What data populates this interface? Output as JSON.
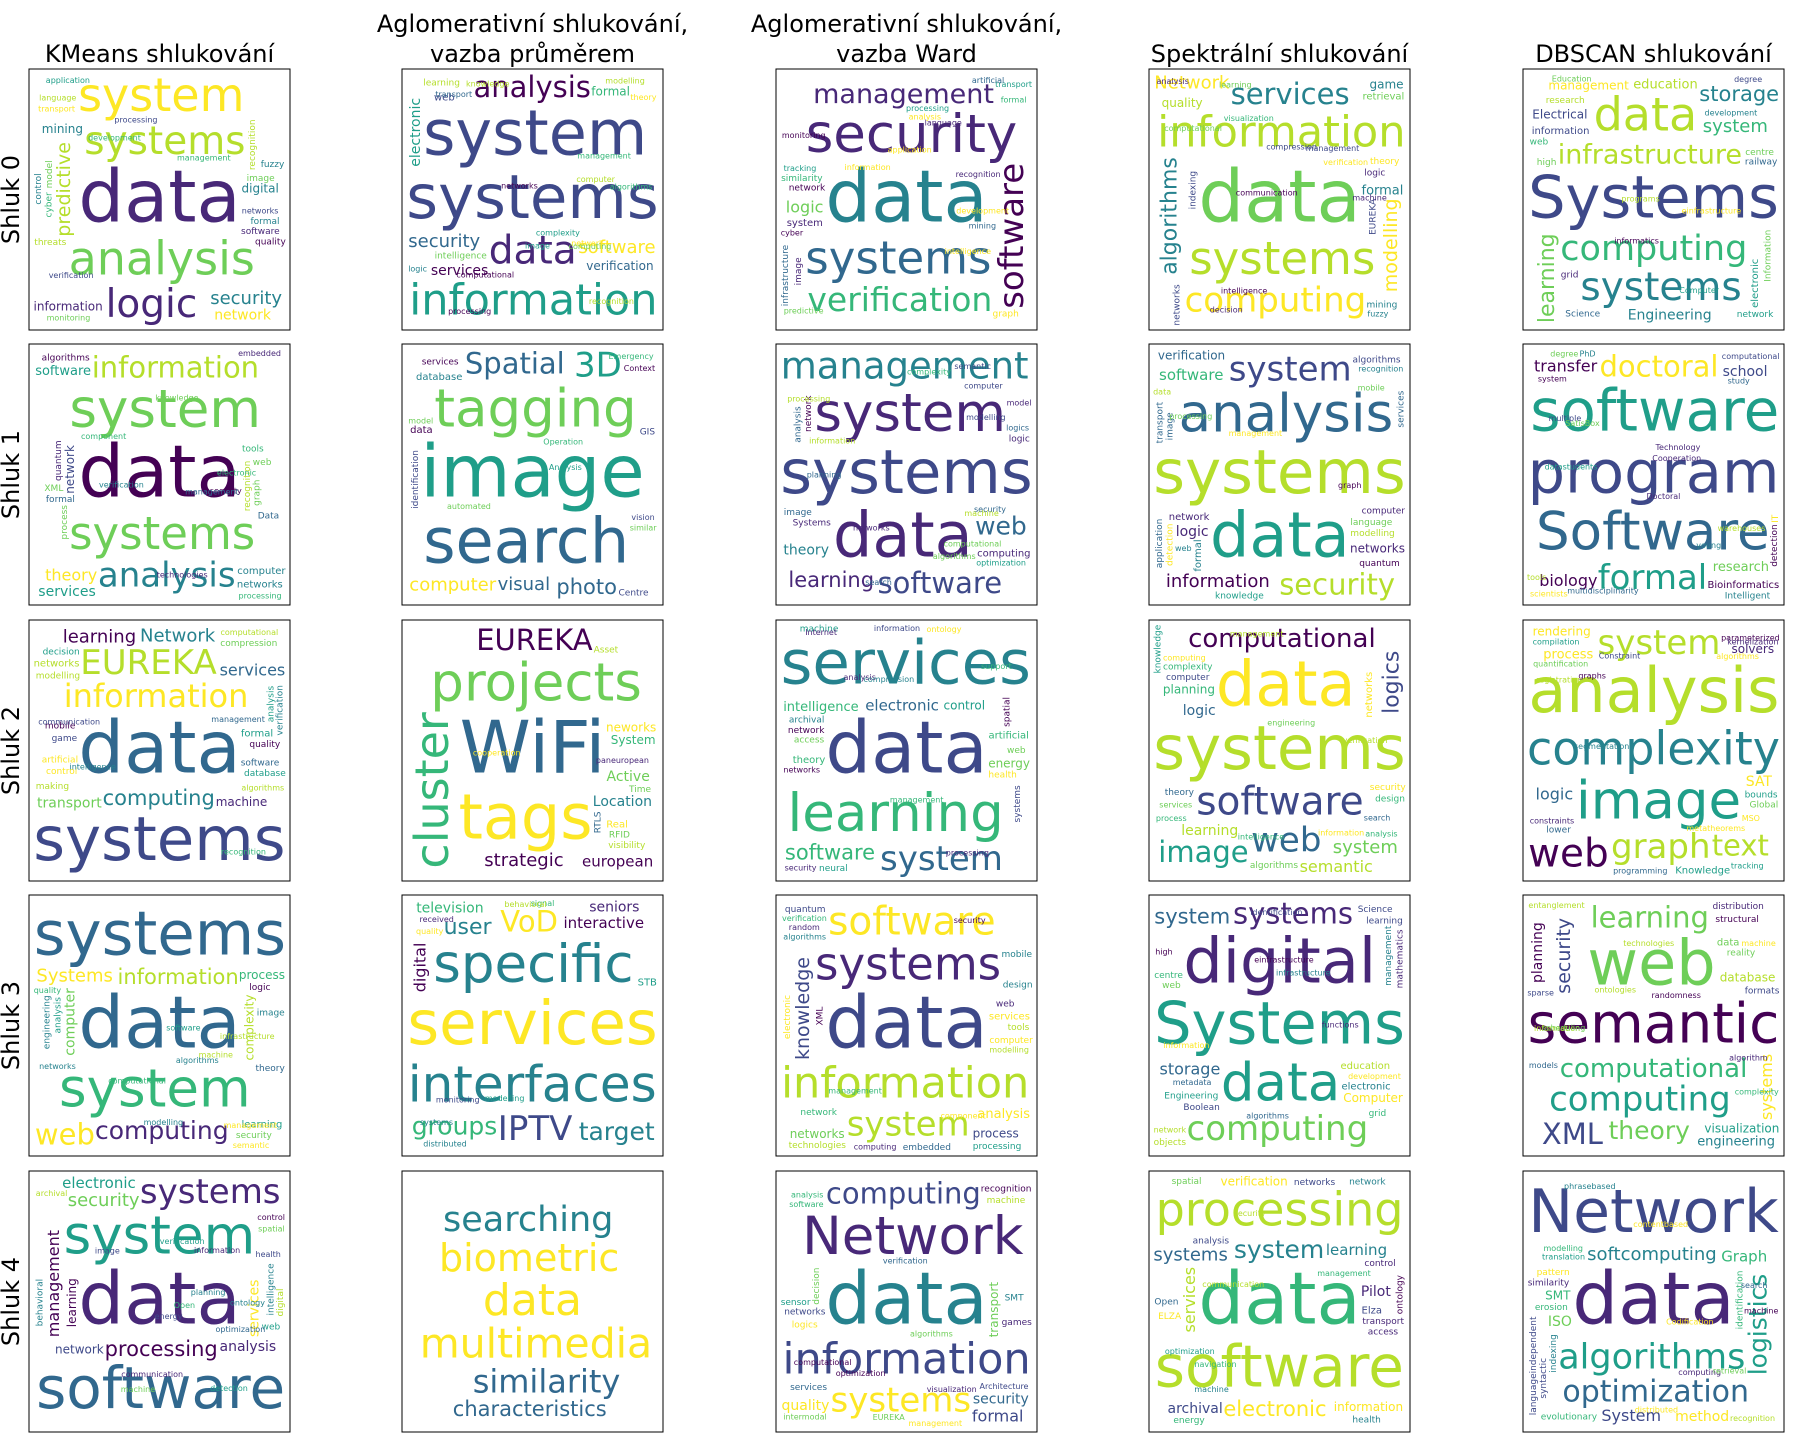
{
  "chart_data": {
    "type": "wordcloud-grid",
    "columns": [
      "KMeans shlukování",
      "Aglomerativní shlukování,\nvazba průměrem",
      "Aglomerativní shlukování,\nvazba Ward",
      "Spektrální shlukování",
      "DBSCAN shlukování"
    ],
    "rows": [
      "Shluk 0",
      "Shluk 1",
      "Shluk 2",
      "Shluk 3",
      "Shluk 4"
    ],
    "clouds": [
      [
        [
          "data",
          "analysis",
          "systems",
          "system",
          "logic",
          "verification",
          "management",
          "security",
          "information",
          "predictive",
          "digital",
          "network",
          "mining",
          "networks",
          "recognition",
          "software",
          "monitoring",
          "image",
          "threats",
          "formal",
          "quality",
          "cyber",
          "processing",
          "application",
          "development",
          "transport",
          "fuzzy",
          "model",
          "control",
          "language"
        ],
        [
          "systems",
          "system",
          "data",
          "information",
          "analysis",
          "software",
          "management",
          "security",
          "verification",
          "services",
          "formal",
          "electronic",
          "intelligence",
          "web",
          "learning",
          "theory",
          "modelling",
          "complexity",
          "image",
          "processing",
          "knowledge",
          "computer",
          "network",
          "transport",
          "networks",
          "logic",
          "algorithms",
          "computing",
          "computational",
          "recognition"
        ],
        [
          "data",
          "systems",
          "security",
          "verification",
          "management",
          "software",
          "formal",
          "analysis",
          "logic",
          "information",
          "network",
          "system",
          "similarity",
          "transport",
          "artificial",
          "monitoring",
          "tracking",
          "cyber",
          "application",
          "predictive",
          "development",
          "recognition",
          "graph",
          "intelligence",
          "mining",
          "processing",
          "language",
          "image",
          "infrastructure"
        ],
        [
          "data",
          "systems",
          "information",
          "computing",
          "services",
          "Network",
          "decision",
          "formal",
          "algorithms",
          "modelling",
          "quality",
          "retrieval",
          "game",
          "communication",
          "indexing",
          "EUREKA",
          "management",
          "logic",
          "visualization",
          "compression",
          "learning",
          "verification",
          "theory",
          "computational",
          "intelligence",
          "analysis",
          "networks",
          "mining",
          "fuzzy",
          "machine"
        ],
        [
          "Systems",
          "infrastructure",
          "computing",
          "data",
          "systems",
          "system",
          "storage",
          "education",
          "learning",
          "Engineering",
          "management",
          "information",
          "Electrical",
          "electronic",
          "railway",
          "research",
          "centre",
          "development",
          "Science",
          "Information",
          "network",
          "high",
          "informatics",
          "grid",
          "degree",
          "programs",
          "Computer",
          "web",
          "einfrastructure",
          "Education"
        ]
      ],
      [
        [
          "data",
          "systems",
          "system",
          "analysis",
          "information",
          "security",
          "knowledge",
          "software",
          "theory",
          "computer",
          "management",
          "services",
          "network",
          "networks",
          "algorithms",
          "recognition",
          "verification",
          "processing",
          "technologies",
          "tools",
          "web",
          "formal",
          "graph",
          "component",
          "electronic",
          "quantum",
          "embedded",
          "process",
          "XML",
          "Data"
        ],
        [
          "image",
          "search",
          "tagging",
          "3D",
          "Spatial",
          "visual",
          "photo",
          "computer",
          "Operation",
          "database",
          "services",
          "vision",
          "Centre",
          "data",
          "GIS",
          "Context",
          "Emergency",
          "automated",
          "model",
          "similar",
          "identification",
          "Analysis"
        ],
        [
          "systems",
          "data",
          "system",
          "management",
          "software",
          "web",
          "learning",
          "algorithms",
          "complexity",
          "computing",
          "Systems",
          "theory",
          "image",
          "optimization",
          "computational",
          "information",
          "analysis",
          "planning",
          "network",
          "logic",
          "logics",
          "search",
          "security",
          "computer",
          "semantic",
          "networks",
          "modelling",
          "model",
          "processing",
          "machine"
        ],
        [
          "systems",
          "data",
          "analysis",
          "system",
          "security",
          "information",
          "software",
          "management",
          "verification",
          "network",
          "networks",
          "logic",
          "computer",
          "formal",
          "language",
          "image",
          "modelling",
          "quantum",
          "detection",
          "knowledge",
          "transport",
          "application",
          "recognition",
          "algorithms",
          "services",
          "graph",
          "mobile",
          "processing",
          "web",
          "data"
        ],
        [
          "program",
          "software",
          "Software",
          "formal",
          "doctoral",
          "Technology",
          "Cooperation",
          "research",
          "transfer",
          "Bioinformatics",
          "biology",
          "school",
          "computational",
          "multidisciplinarity",
          "Intelligent",
          "degree",
          "scientists",
          "IT",
          "study",
          "multiple",
          "PhD",
          "young",
          "system",
          "datastudents",
          "tools",
          "detection",
          "warehouses",
          "Doctoral",
          "SatisBox"
        ]
      ],
      [
        [
          "data",
          "systems",
          "information",
          "EUREKA",
          "computing",
          "Network",
          "management",
          "learning",
          "machine",
          "transport",
          "services",
          "networks",
          "compression",
          "formal",
          "artificial",
          "computational",
          "software",
          "game",
          "control",
          "mobile",
          "database",
          "quality",
          "algorithms",
          "modelling",
          "decision",
          "making",
          "analysis",
          "verification",
          "communication",
          "intelligence",
          "recognition"
        ],
        [
          "WiFi",
          "tags",
          "projects",
          "cluster",
          "EUREKA",
          "strategic",
          "european",
          "paneuropean",
          "cooperation",
          "Location",
          "neworks",
          "Active",
          "System",
          "Real",
          "RTLS",
          "Time",
          "RFID",
          "visibility",
          "Asset"
        ],
        [
          "data",
          "services",
          "learning",
          "system",
          "software",
          "processing",
          "electronic",
          "intelligence",
          "control",
          "artificial",
          "management",
          "information",
          "energy",
          "theory",
          "access",
          "network",
          "health",
          "spatial",
          "networks",
          "archival",
          "web",
          "neural",
          "machine",
          "ontology",
          "security",
          "Internet",
          "systems",
          "analysis",
          "compression",
          "support"
        ],
        [
          "systems",
          "data",
          "software",
          "web",
          "computational",
          "information",
          "image",
          "system",
          "logics",
          "learning",
          "semantic",
          "logic",
          "planning",
          "networks",
          "computer",
          "algorithms",
          "theory",
          "complexity",
          "engineering",
          "security",
          "design",
          "computing",
          "knowledge",
          "management",
          "search",
          "process",
          "services",
          "intelligence",
          "verification",
          "analysis"
        ],
        [
          "complexity",
          "analysis",
          "image",
          "graph",
          "web",
          "system",
          "text",
          "process",
          "rendering",
          "Knowledge",
          "logic",
          "SAT",
          "solvers",
          "programming",
          "parameterized",
          "compilation",
          "constraints",
          "kernelization",
          "Global",
          "Constraint",
          "metatheorems",
          "lower",
          "quantification",
          "bounds",
          "tracking",
          "MSO",
          "segmentation",
          "graphs",
          "registration",
          "algorithms"
        ]
      ],
      [
        [
          "data",
          "systems",
          "system",
          "computing",
          "information",
          "Systems",
          "web",
          "software",
          "algorithms",
          "computational",
          "process",
          "computer",
          "complexity",
          "learning",
          "analysis",
          "image",
          "security",
          "semantic",
          "management",
          "logic",
          "machine",
          "theory",
          "modelling",
          "networks",
          "quality",
          "engineering",
          "infrastructure"
        ],
        [
          "services",
          "interfaces",
          "specific",
          "IPTV",
          "VoD",
          "groups",
          "interactive",
          "target",
          "user",
          "seniors",
          "digital",
          "television",
          "distributed",
          "STB",
          "systems",
          "signal",
          "received",
          "quality",
          "modelling",
          "monitoring",
          "behavioral"
        ],
        [
          "data",
          "systems",
          "information",
          "system",
          "software",
          "security",
          "management",
          "analysis",
          "networks",
          "knowledge",
          "process",
          "services",
          "technologies",
          "modelling",
          "computer",
          "embedded",
          "algorithms",
          "web",
          "design",
          "processing",
          "quantum",
          "network",
          "tools",
          "verification",
          "mobile",
          "computing",
          "XML",
          "component",
          "random",
          "electronic"
        ],
        [
          "Systems",
          "digital",
          "data",
          "computing",
          "systems",
          "infrastructure",
          "system",
          "algorithms",
          "storage",
          "education",
          "Engineering",
          "electronic",
          "Computer",
          "development",
          "learning",
          "Boolean",
          "Science",
          "management",
          "centre",
          "functions",
          "information",
          "objects",
          "web",
          "metadata",
          "network",
          "identification",
          "einfrastructure",
          "grid",
          "high",
          "mathematics"
        ],
        [
          "semantic",
          "web",
          "computational",
          "computing",
          "learning",
          "theory",
          "XML",
          "engineering",
          "database",
          "security",
          "systems",
          "planning",
          "visualization",
          "data",
          "reality",
          "structural",
          "distribution",
          "entanglement",
          "information",
          "machine",
          "algorithm",
          "randomness",
          "scheduling",
          "formats",
          "models",
          "technologies",
          "sparse",
          "ontologies",
          "complexity"
        ]
      ],
      [
        [
          "data",
          "software",
          "system",
          "systems",
          "processing",
          "security",
          "electronic",
          "information",
          "network",
          "analysis",
          "management",
          "services",
          "learning",
          "health",
          "spatial",
          "ontology",
          "verification",
          "intelligence",
          "web",
          "detection",
          "Open",
          "behavioral",
          "control",
          "image",
          "energy",
          "planning",
          "archival",
          "digital",
          "optimization",
          "machine",
          "communication"
        ],
        [
          "data",
          "multimedia",
          "biometric",
          "searching",
          "similarity",
          "characteristics"
        ],
        [
          "data",
          "information",
          "Network",
          "systems",
          "computing",
          "EUREKA",
          "computational",
          "algorithms",
          "verification",
          "security",
          "formal",
          "quality",
          "transport",
          "management",
          "networks",
          "decision",
          "logics",
          "Architecture",
          "services",
          "machine",
          "SMT",
          "recognition",
          "games",
          "sensor",
          "intermodal",
          "software",
          "visualization",
          "analysis",
          "optimization"
        ],
        [
          "data",
          "software",
          "processing",
          "system",
          "electronic",
          "systems",
          "learning",
          "management",
          "information",
          "archival",
          "services",
          "Pilot",
          "verification",
          "Elza",
          "transport",
          "analysis",
          "networks",
          "energy",
          "access",
          "ELZA",
          "control",
          "Open",
          "spatial",
          "health",
          "ontology",
          "network",
          "security",
          "navigation",
          "optimization",
          "machine",
          "communication"
        ],
        [
          "data",
          "Network",
          "algorithms",
          "optimization",
          "computing",
          "softcomputing",
          "Graph",
          "logistics",
          "System",
          "method",
          "evolutionary",
          "ISO",
          "SMT",
          "translation",
          "recognition",
          "erosion",
          "identification",
          "pattern",
          "modelling",
          "languageindependent",
          "Codification",
          "phrasebased",
          "indexing",
          "similarity",
          "retrieval",
          "search",
          "machine",
          "syntactic",
          "distributed",
          "contentbased"
        ]
      ]
    ]
  }
}
